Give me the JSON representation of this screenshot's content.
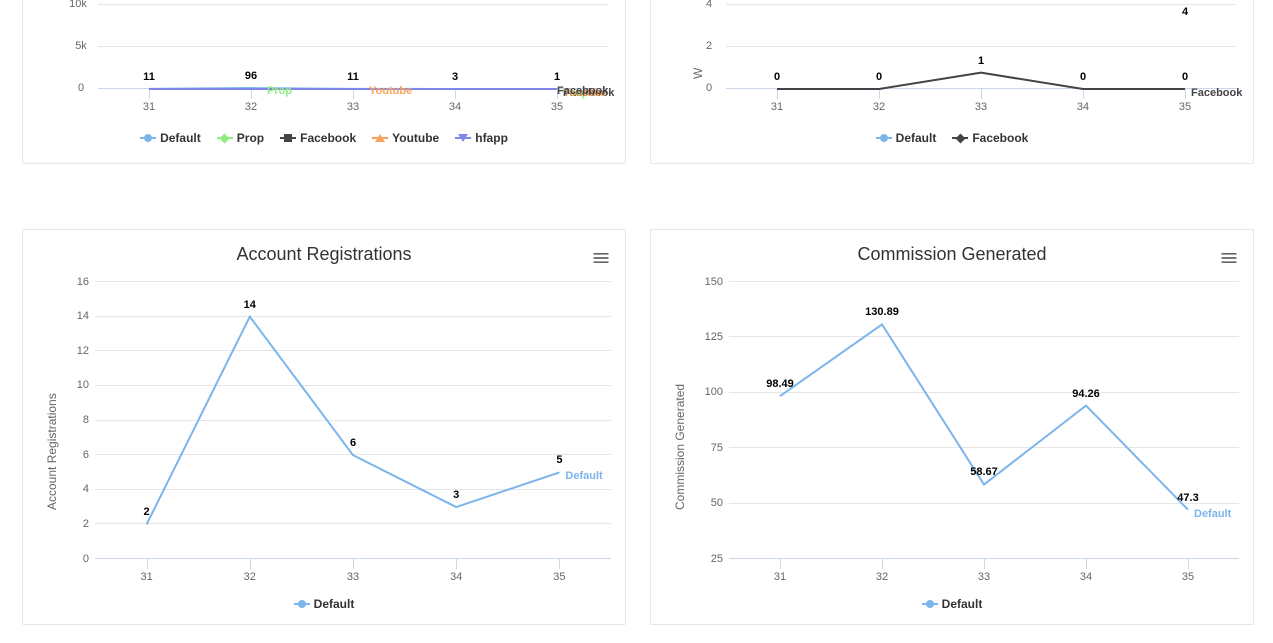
{
  "colors": {
    "default_blue": "#7cb5ec",
    "prop_green": "#90ed7d",
    "facebook_black": "#434348",
    "youtube_orange": "#f7a35c",
    "hfapp_purple": "#8085e9",
    "grid": "#e6e6e6",
    "axis": "#ccd6eb",
    "text": "#666666",
    "title": "#333333",
    "card_border": "#e6e6e6"
  },
  "card1": {
    "plot": {
      "categories": [
        "31",
        "32",
        "33",
        "34",
        "35"
      ],
      "ylim": [
        0,
        10000
      ],
      "ytick_step": 5000,
      "ytick_labels": [
        "0",
        "5k",
        "10k"
      ]
    },
    "series": [
      {
        "name": "Default",
        "color": "#7cb5ec",
        "marker": "circle",
        "data_labels": [
          "11",
          "96",
          "11",
          "3",
          "1"
        ],
        "y_frac": [
          0.0011,
          0.0096,
          0.0011,
          0.0003,
          0.0001
        ]
      },
      {
        "name": "Prop",
        "color": "#90ed7d",
        "marker": "diamond",
        "y_frac": [
          0,
          0,
          0,
          0,
          0
        ],
        "endlabel": "Prop"
      },
      {
        "name": "Facebook",
        "color": "#434348",
        "marker": "square",
        "y_frac": [
          0,
          0,
          0,
          0,
          0
        ],
        "endlabel": "Facebook"
      },
      {
        "name": "Youtube",
        "color": "#f7a35c",
        "marker": "triangle",
        "y_frac": [
          0,
          0,
          0,
          0,
          0
        ],
        "endlabel": "Youtube"
      },
      {
        "name": "hfapp",
        "color": "#8085e9",
        "marker": "triangle-down",
        "y_frac": [
          0,
          0,
          0,
          0,
          0
        ]
      }
    ],
    "legend": [
      "Default",
      "Prop",
      "Facebook",
      "Youtube",
      "hfapp"
    ]
  },
  "card2": {
    "plot": {
      "categories": [
        "31",
        "32",
        "33",
        "34",
        "35"
      ],
      "ylim": [
        0,
        6
      ],
      "ytick_step": 2,
      "ytick_labels": [
        "0",
        "2",
        "4"
      ],
      "y_axis_title_char": "W"
    },
    "series": [
      {
        "name": "Default",
        "color": "#7cb5ec",
        "marker": "circle",
        "data_labels": [
          "",
          "",
          "",
          "",
          "4"
        ],
        "y_frac": [
          null,
          null,
          null,
          null,
          0.666
        ]
      },
      {
        "name": "Facebook",
        "color": "#434348",
        "marker": "diamond",
        "data_labels": [
          "0",
          "0",
          "1",
          "0",
          "0"
        ],
        "y_frac": [
          0,
          0,
          0.1666,
          0,
          0
        ],
        "endlabel": "Facebook"
      }
    ],
    "legend": [
      "Default",
      "Facebook"
    ]
  },
  "card3": {
    "title": "Account Registrations",
    "y_axis_title": "Account Registrations",
    "plot": {
      "categories": [
        "31",
        "32",
        "33",
        "34",
        "35"
      ],
      "ylim": [
        0,
        16
      ],
      "ytick_step": 2,
      "ytick_labels": [
        "0",
        "2",
        "4",
        "6",
        "8",
        "10",
        "12",
        "14",
        "16"
      ]
    },
    "series": [
      {
        "name": "Default",
        "color": "#7cb5ec",
        "marker": "circle",
        "data_labels": [
          "2",
          "14",
          "6",
          "3",
          "5"
        ],
        "y_frac": [
          0.125,
          0.875,
          0.375,
          0.1875,
          0.3125
        ],
        "endlabel": "Default",
        "endlabel_color": "#7cb5ec"
      }
    ],
    "legend": [
      "Default"
    ]
  },
  "card4": {
    "title": "Commission Generated",
    "y_axis_title": "Commission Generated",
    "plot": {
      "categories": [
        "31",
        "32",
        "33",
        "34",
        "35"
      ],
      "ylim": [
        25,
        150
      ],
      "ytick_step": 25,
      "ytick_labels": [
        "25",
        "50",
        "75",
        "100",
        "125",
        "150"
      ]
    },
    "series": [
      {
        "name": "Default",
        "color": "#7cb5ec",
        "marker": "circle",
        "data_labels": [
          "98.49",
          "130.89",
          "58.67",
          "94.26",
          "47.3"
        ],
        "y_frac": [
          0.5879,
          0.847,
          0.269,
          0.554,
          0.178
        ],
        "endlabel": "Default",
        "endlabel_color": "#7cb5ec"
      }
    ],
    "legend": [
      "Default"
    ]
  }
}
